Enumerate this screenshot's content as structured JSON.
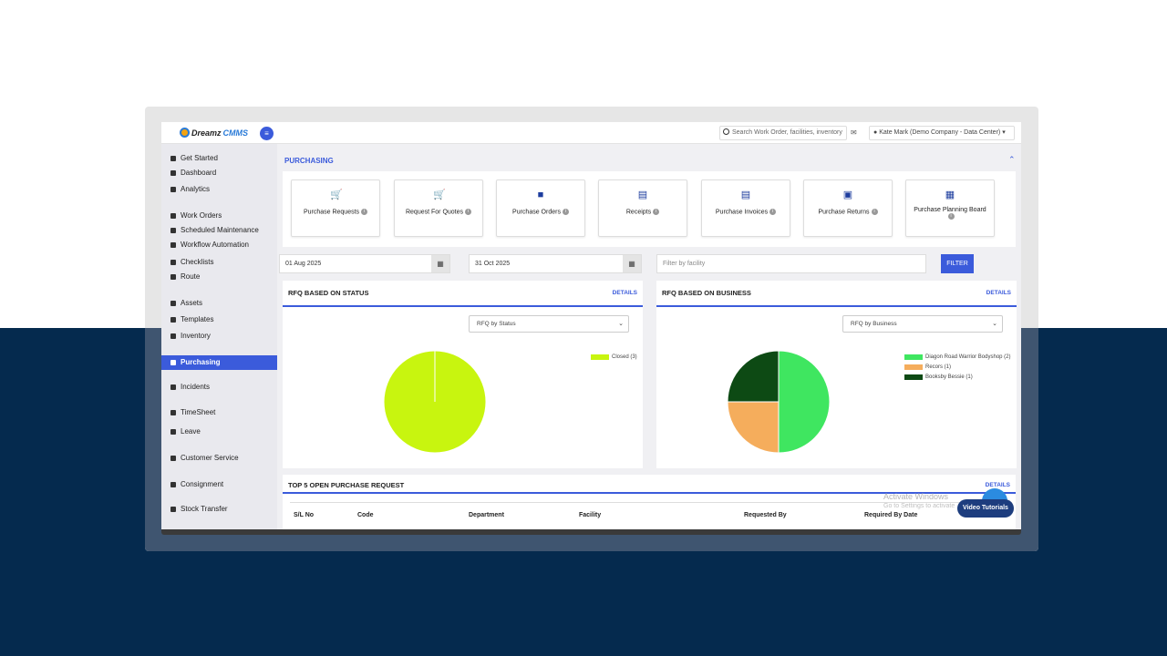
{
  "colors": {
    "accent": "#3b5bdb",
    "navy": "#052a4e",
    "pie_lime": "#c8f50f",
    "pie_green": "#3fe660",
    "pie_orange": "#f5ad5c",
    "pie_dark": "#0d4a14"
  },
  "header": {
    "logo_brand": "Dreamz",
    "logo_product": "CMMS",
    "search_placeholder": "Search Work Order, facilities, inventory",
    "user_label": "Kate Mark (Demo Company - Data Center)"
  },
  "sidebar": {
    "items": [
      {
        "label": "Get Started",
        "icon": "gear-icon"
      },
      {
        "label": "Dashboard",
        "icon": "dashboard-icon"
      },
      {
        "label": "Analytics",
        "icon": "analytics-icon"
      },
      {
        "label": "Work Orders",
        "icon": "wrench-icon"
      },
      {
        "label": "Scheduled Maintenance",
        "icon": "wrench-icon"
      },
      {
        "label": "Workflow Automation",
        "icon": "flow-icon"
      },
      {
        "label": "Checklists",
        "icon": "checkbox-icon"
      },
      {
        "label": "Route",
        "icon": "route-icon"
      },
      {
        "label": "Assets",
        "icon": "assets-icon"
      },
      {
        "label": "Templates",
        "icon": "templates-icon"
      },
      {
        "label": "Inventory",
        "icon": "inventory-icon"
      },
      {
        "label": "Purchasing",
        "icon": "cart-icon"
      },
      {
        "label": "Incidents",
        "icon": "cart-icon"
      },
      {
        "label": "TimeSheet",
        "icon": "calendar-icon"
      },
      {
        "label": "Leave",
        "icon": "calendar-icon"
      },
      {
        "label": "Customer Service",
        "icon": "document-icon"
      },
      {
        "label": "Consignment",
        "icon": "truck-icon"
      },
      {
        "label": "Stock Transfer",
        "icon": "truck-icon"
      }
    ]
  },
  "main": {
    "section_title": "PURCHASING",
    "tiles": [
      {
        "label": "Purchase Requests",
        "icon": "cart-icon"
      },
      {
        "label": "Request For Quotes",
        "icon": "cart-plus-icon"
      },
      {
        "label": "Purchase Orders",
        "icon": "bag-icon"
      },
      {
        "label": "Receipts",
        "icon": "receipt-icon"
      },
      {
        "label": "Purchase Invoices",
        "icon": "invoice-icon"
      },
      {
        "label": "Purchase Returns",
        "icon": "return-icon"
      },
      {
        "label": "Purchase Planning Board",
        "icon": "board-icon"
      }
    ],
    "filters": {
      "start_date": "01 Aug 2025",
      "end_date": "31 Oct 2025",
      "facility_placeholder": "Filter by facility",
      "filter_button": "FILTER"
    },
    "panel_status": {
      "title": "RFQ BASED ON STATUS",
      "details": "DETAILS",
      "select_value": "RFQ by Status"
    },
    "panel_business": {
      "title": "RFQ BASED ON BUSINESS",
      "details": "DETAILS",
      "select_value": "RFQ by Business"
    },
    "bottom_panel": {
      "title": "TOP 5 OPEN PURCHASE REQUEST",
      "details": "DETAILS",
      "columns": [
        "S/L No",
        "Code",
        "Department",
        "Facility",
        "Requested By",
        "Required By Date"
      ]
    }
  },
  "chart_data": [
    {
      "type": "pie",
      "title": "RFQ BASED ON STATUS",
      "categories": [
        "Closed (3)"
      ],
      "values": [
        3
      ],
      "colors": [
        "#c8f50f"
      ],
      "legend": "top-right"
    },
    {
      "type": "pie",
      "title": "RFQ BASED ON BUSINESS",
      "categories": [
        "Diagon Road Warrior Bodyshop (2)",
        "Recors (1)",
        "Booksby Bessie (1)"
      ],
      "values": [
        2,
        1,
        1
      ],
      "colors": [
        "#3fe660",
        "#f5ad5c",
        "#0d4a14"
      ],
      "legend": "top-right"
    }
  ],
  "overlay": {
    "watermark_title": "Activate Windows",
    "watermark_sub": "Go to Settings to activate Windows.",
    "video_button": "Video Tutorials"
  }
}
